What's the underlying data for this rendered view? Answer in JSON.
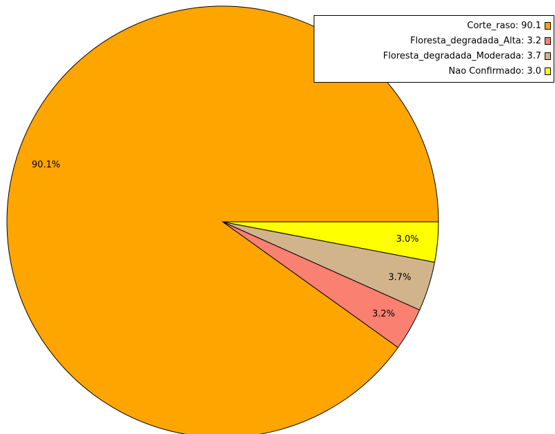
{
  "chart_data": {
    "type": "pie",
    "title": "",
    "legend_position": "top-right",
    "slices": [
      {
        "label": "Corte_raso",
        "value": 90.1,
        "legend_text": "Corte_raso: 90.1",
        "pct_label": "90.1%",
        "color": "#FFA500"
      },
      {
        "label": "Floresta_degradada_Alta",
        "value": 3.2,
        "legend_text": "Floresta_degradada_Alta: 3.2",
        "pct_label": "3.2%",
        "color": "#FA8072"
      },
      {
        "label": "Floresta_degradada_Moderada",
        "value": 3.7,
        "legend_text": "Floresta_degradada_Moderada: 3.7",
        "pct_label": "3.7%",
        "color": "#D2B48C"
      },
      {
        "label": "Nao Confirmado",
        "value": 3.0,
        "legend_text": "Nao Confirmado: 3.0",
        "pct_label": "3.0%",
        "color": "#FFFF00"
      }
    ]
  }
}
